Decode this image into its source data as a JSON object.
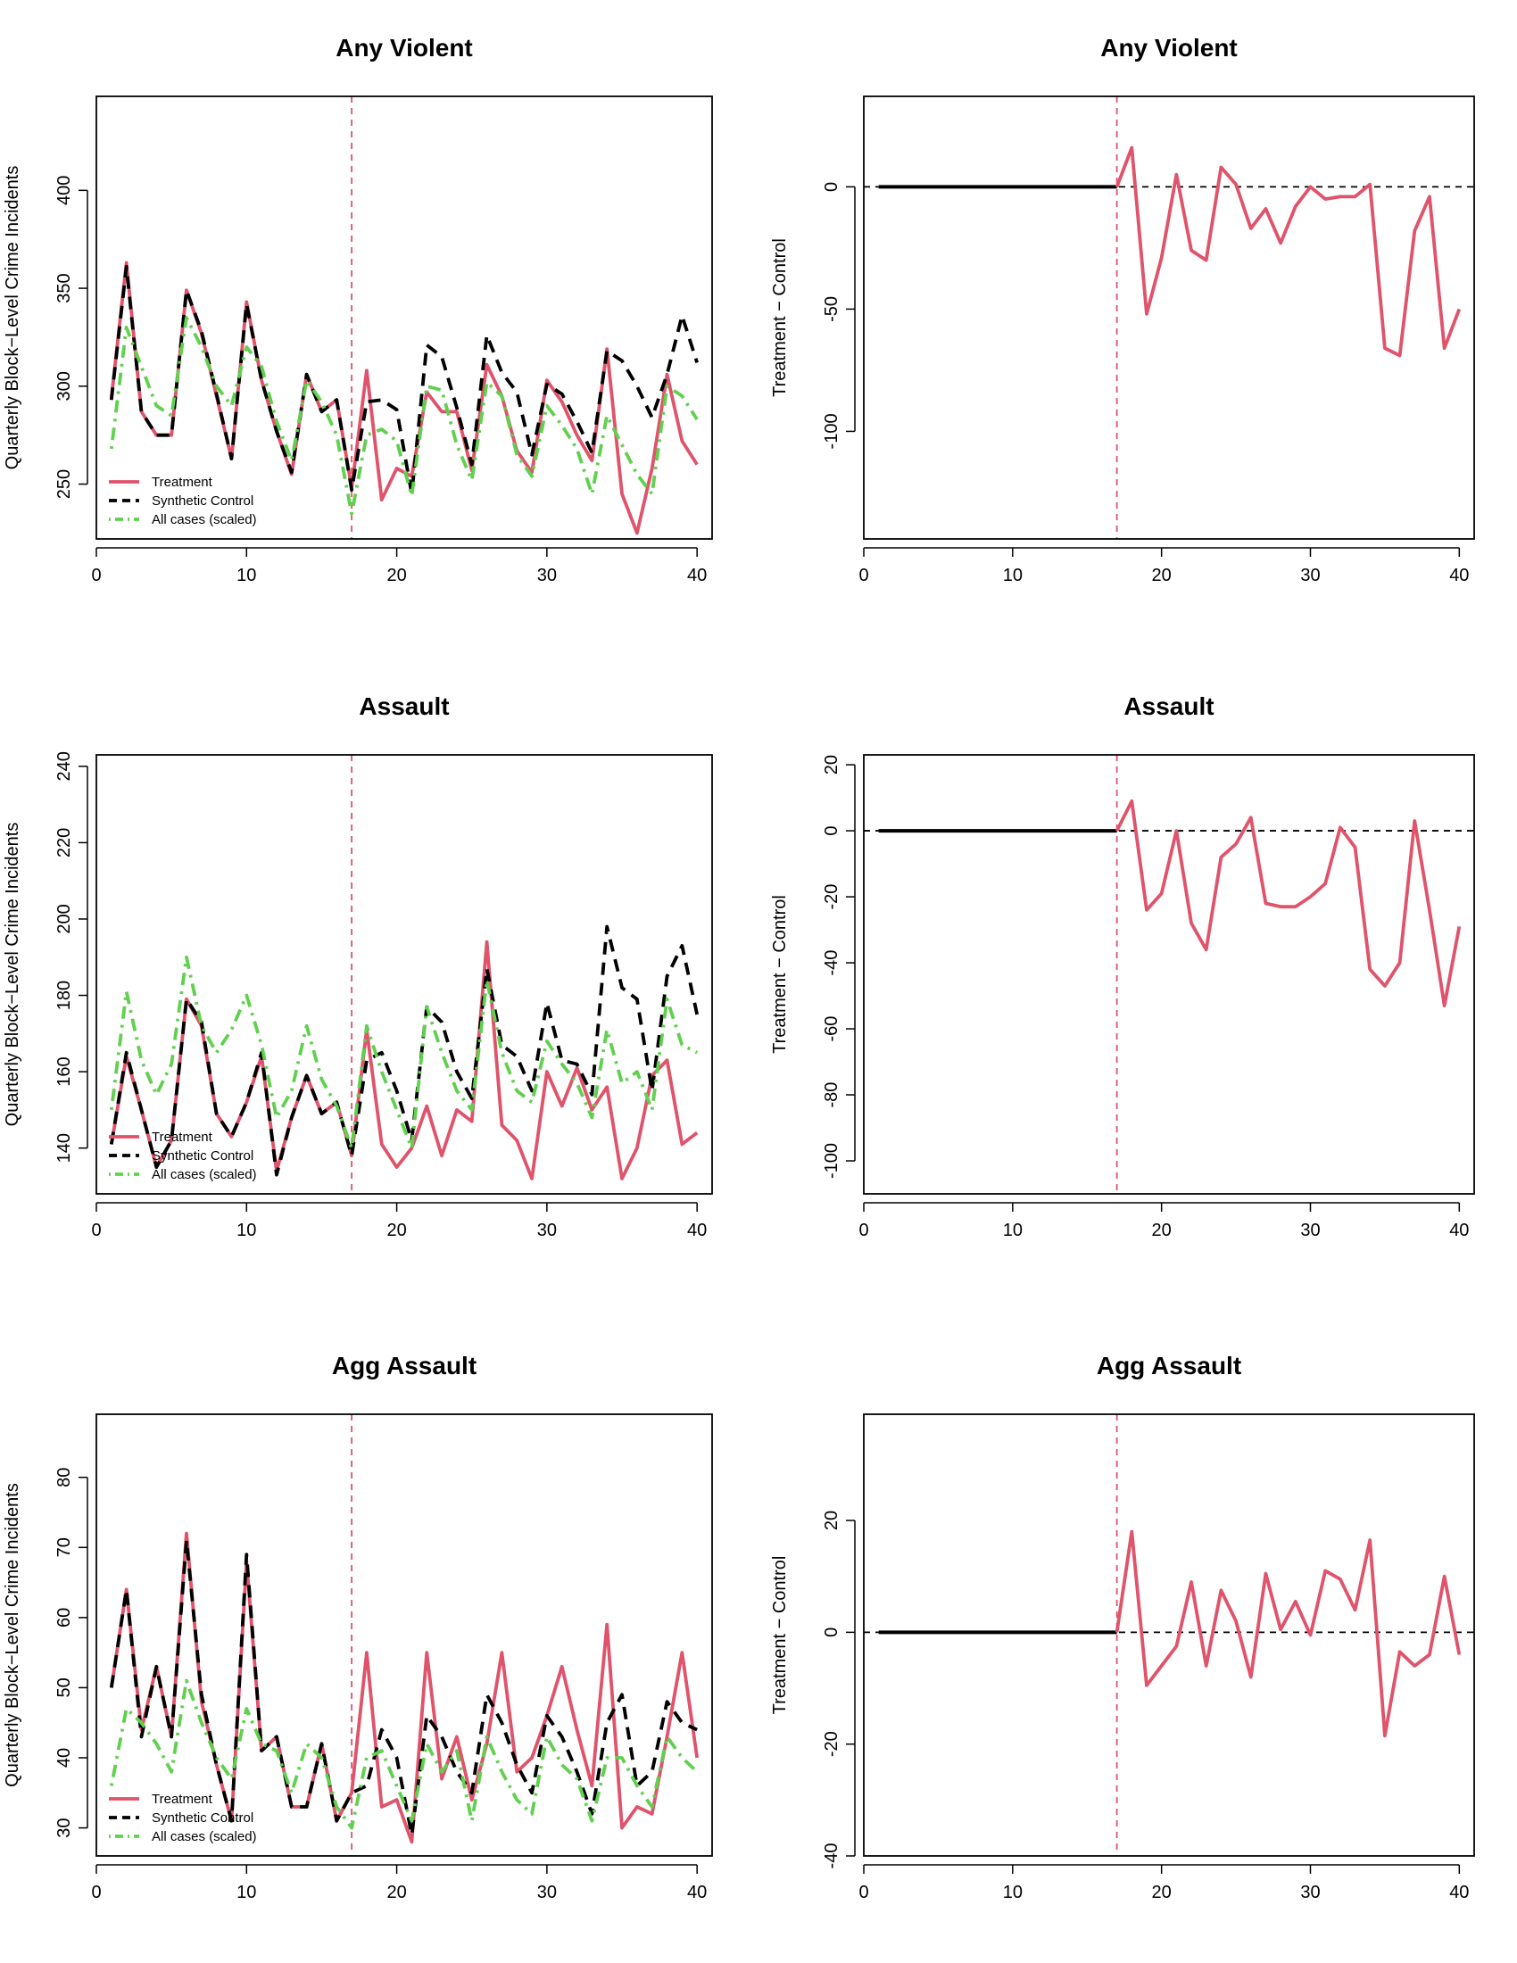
{
  "figure": {
    "background": "#ffffff"
  },
  "colors": {
    "treatment": "#df536b",
    "synthetic": "#000000",
    "allcases": "#61d04f",
    "vline": "#df536b",
    "diff": "#df536b"
  },
  "chart_data": [
    {
      "id": "p1",
      "type": "line",
      "title": "Any Violent",
      "ylabel": "Quarterly Block−Level Crime Incidents",
      "xlabel": "",
      "xlim": [
        0,
        41
      ],
      "ylim": [
        222,
        448
      ],
      "xticks": [
        0,
        10,
        20,
        30,
        40
      ],
      "yticks": [
        250,
        300,
        350,
        400
      ],
      "vline": 17,
      "legend": {
        "position": "bottom-left",
        "entries": [
          "Treatment",
          "Synthetic Control",
          "All cases (scaled)"
        ]
      },
      "x": [
        1,
        2,
        3,
        4,
        5,
        6,
        7,
        8,
        9,
        10,
        11,
        12,
        13,
        14,
        15,
        16,
        17,
        18,
        19,
        20,
        21,
        22,
        23,
        24,
        25,
        26,
        27,
        28,
        29,
        30,
        31,
        32,
        33,
        34,
        35,
        36,
        37,
        38,
        39,
        40
      ],
      "series": [
        {
          "name": "Treatment",
          "color": "#df536b",
          "dash": "solid",
          "values": [
            294,
            363,
            287,
            275,
            275,
            349,
            327,
            295,
            263,
            343,
            303,
            277,
            255,
            306,
            287,
            293,
            248,
            308,
            242,
            258,
            254,
            297,
            287,
            287,
            257,
            311,
            295,
            267,
            256,
            303,
            292,
            275,
            262,
            319,
            245,
            225,
            258,
            306,
            272,
            260
          ]
        },
        {
          "name": "Synthetic Control",
          "color": "#000000",
          "dash": "dashed",
          "values": [
            293,
            361,
            287,
            275,
            275,
            349,
            328,
            296,
            263,
            342,
            303,
            277,
            256,
            306,
            287,
            293,
            247,
            292,
            293,
            288,
            245,
            321,
            315,
            289,
            260,
            326,
            307,
            297,
            265,
            301,
            296,
            282,
            266,
            318,
            313,
            300,
            284,
            306,
            336,
            312
          ]
        },
        {
          "name": "All cases (scaled)",
          "color": "#61d04f",
          "dash": "dotdash",
          "values": [
            268,
            330,
            310,
            290,
            285,
            335,
            320,
            300,
            290,
            320,
            310,
            282,
            262,
            303,
            292,
            275,
            235,
            275,
            278,
            272,
            244,
            300,
            298,
            270,
            252,
            302,
            295,
            265,
            254,
            290,
            280,
            268,
            245,
            285,
            270,
            255,
            245,
            300,
            295,
            283
          ]
        }
      ]
    },
    {
      "id": "p2",
      "type": "line",
      "title": "Any Violent",
      "ylabel": "Treatment − Control",
      "xlabel": "",
      "xlim": [
        0,
        41
      ],
      "ylim": [
        -144,
        37
      ],
      "xticks": [
        0,
        10,
        20,
        30,
        40
      ],
      "yticks": [
        -100,
        -50,
        0
      ],
      "vline": 17,
      "hline": 0,
      "pre": {
        "x": [
          1,
          17
        ],
        "values": [
          0,
          0
        ]
      },
      "series": [
        {
          "name": "Treatment − Control",
          "color": "#df536b",
          "dash": "solid",
          "x": [
            17,
            18,
            19,
            20,
            21,
            22,
            23,
            24,
            25,
            26,
            27,
            28,
            29,
            30,
            31,
            32,
            33,
            34,
            35,
            36,
            37,
            38,
            39,
            40
          ],
          "values": [
            0,
            16,
            -52,
            -29,
            5,
            -26,
            -30,
            8,
            1,
            -17,
            -9,
            -23,
            -8,
            0,
            -5,
            -4,
            -4,
            1,
            -66,
            -69,
            -18,
            -4,
            -66,
            -50
          ]
        }
      ]
    },
    {
      "id": "p3",
      "type": "line",
      "title": "Assault",
      "ylabel": "Quarterly Block−Level Crime Incidents",
      "xlabel": "",
      "xlim": [
        0,
        41
      ],
      "ylim": [
        128,
        243
      ],
      "xticks": [
        0,
        10,
        20,
        30,
        40
      ],
      "yticks": [
        140,
        160,
        180,
        200,
        220,
        240
      ],
      "vline": 17,
      "legend": {
        "position": "bottom-left",
        "entries": [
          "Treatment",
          "Synthetic Control",
          "All cases (scaled)"
        ]
      },
      "x": [
        1,
        2,
        3,
        4,
        5,
        6,
        7,
        8,
        9,
        10,
        11,
        12,
        13,
        14,
        15,
        16,
        17,
        18,
        19,
        20,
        21,
        22,
        23,
        24,
        25,
        26,
        27,
        28,
        29,
        30,
        31,
        32,
        33,
        34,
        35,
        36,
        37,
        38,
        39,
        40
      ],
      "series": [
        {
          "name": "Treatment",
          "color": "#df536b",
          "dash": "solid",
          "values": [
            141,
            164,
            150,
            135,
            142,
            179,
            172,
            149,
            143,
            152,
            164,
            134,
            148,
            159,
            149,
            152,
            138,
            171,
            141,
            135,
            140,
            151,
            138,
            150,
            147,
            194,
            146,
            142,
            132,
            160,
            151,
            161,
            150,
            156,
            132,
            140,
            159,
            163,
            141,
            144
          ]
        },
        {
          "name": "Synthetic Control",
          "color": "#000000",
          "dash": "dashed",
          "values": [
            141,
            165,
            150,
            135,
            142,
            179,
            173,
            149,
            143,
            152,
            165,
            133,
            148,
            159,
            149,
            152,
            138,
            163,
            165,
            155,
            142,
            177,
            173,
            160,
            153,
            187,
            167,
            164,
            155,
            178,
            163,
            162,
            154,
            198,
            182,
            179,
            155,
            185,
            193,
            175
          ]
        },
        {
          "name": "All cases (scaled)",
          "color": "#61d04f",
          "dash": "dotdash",
          "values": [
            150,
            181,
            163,
            154,
            162,
            190,
            172,
            165,
            171,
            180,
            167,
            148,
            155,
            172,
            158,
            151,
            140,
            172,
            160,
            150,
            140,
            177,
            165,
            155,
            150,
            184,
            165,
            155,
            152,
            168,
            162,
            157,
            148,
            171,
            157,
            160,
            150,
            179,
            167,
            165
          ]
        }
      ]
    },
    {
      "id": "p4",
      "type": "line",
      "title": "Assault",
      "ylabel": "Treatment − Control",
      "xlabel": "",
      "xlim": [
        0,
        41
      ],
      "ylim": [
        -110,
        23
      ],
      "xticks": [
        0,
        10,
        20,
        30,
        40
      ],
      "yticks": [
        -100,
        -80,
        -60,
        -40,
        -20,
        0,
        20
      ],
      "vline": 17,
      "hline": 0,
      "pre": {
        "x": [
          1,
          17
        ],
        "values": [
          0,
          0
        ]
      },
      "series": [
        {
          "name": "Treatment − Control",
          "color": "#df536b",
          "dash": "solid",
          "x": [
            17,
            18,
            19,
            20,
            21,
            22,
            23,
            24,
            25,
            26,
            27,
            28,
            29,
            30,
            31,
            32,
            33,
            34,
            35,
            36,
            37,
            38,
            39,
            40
          ],
          "values": [
            0,
            9,
            -24,
            -19,
            0,
            -28,
            -36,
            -8,
            -4,
            4,
            -22,
            -23,
            -23,
            -20,
            -16,
            1,
            -5,
            -42,
            -47,
            -40,
            3,
            -24,
            -53,
            -29
          ]
        }
      ]
    },
    {
      "id": "p5",
      "type": "line",
      "title": "Agg Assault",
      "ylabel": "Quarterly Block−Level Crime Incidents",
      "xlabel": "",
      "xlim": [
        0,
        41
      ],
      "ylim": [
        26,
        89
      ],
      "xticks": [
        0,
        10,
        20,
        30,
        40
      ],
      "yticks": [
        30,
        40,
        50,
        60,
        70,
        80
      ],
      "vline": 17,
      "legend": {
        "position": "bottom-left",
        "entries": [
          "Treatment",
          "Synthetic Control",
          "All cases (scaled)"
        ]
      },
      "x": [
        1,
        2,
        3,
        4,
        5,
        6,
        7,
        8,
        9,
        10,
        11,
        12,
        13,
        14,
        15,
        16,
        17,
        18,
        19,
        20,
        21,
        22,
        23,
        24,
        25,
        26,
        27,
        28,
        29,
        30,
        31,
        32,
        33,
        34,
        35,
        36,
        37,
        38,
        39,
        40
      ],
      "series": [
        {
          "name": "Treatment",
          "color": "#df536b",
          "dash": "solid",
          "values": [
            50,
            64,
            44,
            53,
            43,
            72,
            48,
            39,
            31,
            68,
            41,
            43,
            33,
            33,
            42,
            31,
            35,
            55,
            33,
            34,
            28,
            55,
            37,
            43,
            34,
            42,
            55,
            38,
            40,
            46,
            53,
            44,
            36,
            59,
            30,
            33,
            32,
            43,
            55,
            40
          ]
        },
        {
          "name": "Synthetic Control",
          "color": "#000000",
          "dash": "dashed",
          "values": [
            50,
            64,
            43,
            53,
            43,
            71,
            49,
            39,
            31,
            69,
            41,
            43,
            33,
            33,
            42,
            31,
            35,
            36,
            44,
            40,
            29,
            46,
            43,
            38,
            35,
            49,
            45,
            39,
            35,
            46,
            43,
            38,
            32,
            45,
            49,
            36,
            38,
            48,
            45,
            44
          ]
        },
        {
          "name": "All cases (scaled)",
          "color": "#61d04f",
          "dash": "dotdash",
          "values": [
            36,
            47,
            45,
            42,
            38,
            51,
            45,
            40,
            37,
            47,
            42,
            41,
            35,
            42,
            40,
            33,
            30,
            40,
            41,
            36,
            31,
            42,
            38,
            41,
            31,
            43,
            38,
            34,
            32,
            43,
            39,
            37,
            31,
            40,
            40,
            36,
            33,
            43,
            40,
            38
          ]
        }
      ]
    },
    {
      "id": "p6",
      "type": "line",
      "title": "Agg Assault",
      "ylabel": "Treatment − Control",
      "xlabel": "",
      "xlim": [
        0,
        41
      ],
      "ylim": [
        -40,
        39
      ],
      "xticks": [
        0,
        10,
        20,
        30,
        40
      ],
      "yticks": [
        -40,
        -20,
        0,
        20
      ],
      "vline": 17,
      "hline": 0,
      "pre": {
        "x": [
          1,
          17
        ],
        "values": [
          0,
          0
        ]
      },
      "series": [
        {
          "name": "Treatment − Control",
          "color": "#df536b",
          "dash": "solid",
          "x": [
            17,
            18,
            19,
            20,
            21,
            22,
            23,
            24,
            25,
            26,
            27,
            28,
            29,
            30,
            31,
            32,
            33,
            34,
            35,
            36,
            37,
            38,
            39,
            40
          ],
          "values": [
            0,
            18,
            -9.5,
            -6,
            -2.5,
            9,
            -6,
            7.5,
            2,
            -8,
            10.5,
            0.5,
            5.5,
            -0.5,
            11,
            9.5,
            4,
            16.5,
            -18.5,
            -3.5,
            -6,
            -4,
            10,
            -4
          ]
        }
      ]
    }
  ]
}
